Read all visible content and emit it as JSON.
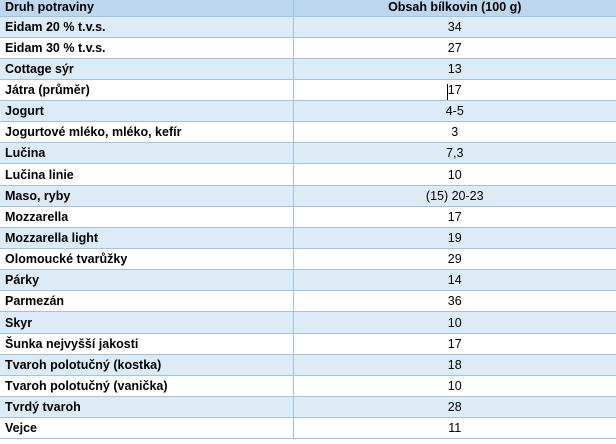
{
  "table": {
    "headers": {
      "name": "Druh potraviny",
      "value": "Obsah bílkovin (100 g)"
    },
    "rows": [
      {
        "name": "Eidam 20 % t.v.s.",
        "value": "34"
      },
      {
        "name": "Eidam 30 %  t.v.s.",
        "value": "27"
      },
      {
        "name": "Cottage sýr",
        "value": "13"
      },
      {
        "name": "Játra (průměr)",
        "value": "17"
      },
      {
        "name": "Jogurt",
        "value": "4-5"
      },
      {
        "name": "Jogurtové mléko, mléko, kefír",
        "value": "3"
      },
      {
        "name": "Lučina",
        "value": "7,3"
      },
      {
        "name": "Lučina linie",
        "value": "10"
      },
      {
        "name": "Maso, ryby",
        "value": "(15) 20-23"
      },
      {
        "name": "Mozzarella",
        "value": "17"
      },
      {
        "name": "Mozzarella light",
        "value": "19"
      },
      {
        "name": "Olomoucké tvarůžky",
        "value": "29"
      },
      {
        "name": "Párky",
        "value": "14"
      },
      {
        "name": "Parmezán",
        "value": "36"
      },
      {
        "name": "Skyr",
        "value": "10"
      },
      {
        "name": "Šunka nejvyšší jakosti",
        "value": "17"
      },
      {
        "name": "Tvaroh polotučný (kostka)",
        "value": "18"
      },
      {
        "name": "Tvaroh polotučný (vanička)",
        "value": "10"
      },
      {
        "name": "Tvrdý tvaroh",
        "value": "28"
      },
      {
        "name": "Vejce",
        "value": "11"
      }
    ]
  },
  "colors": {
    "header_background": "#bdd7ee",
    "band_background": "#ddebf7",
    "plain_background": "#ffffff",
    "grid_line": "#9dc3e6",
    "text": "#000000"
  }
}
